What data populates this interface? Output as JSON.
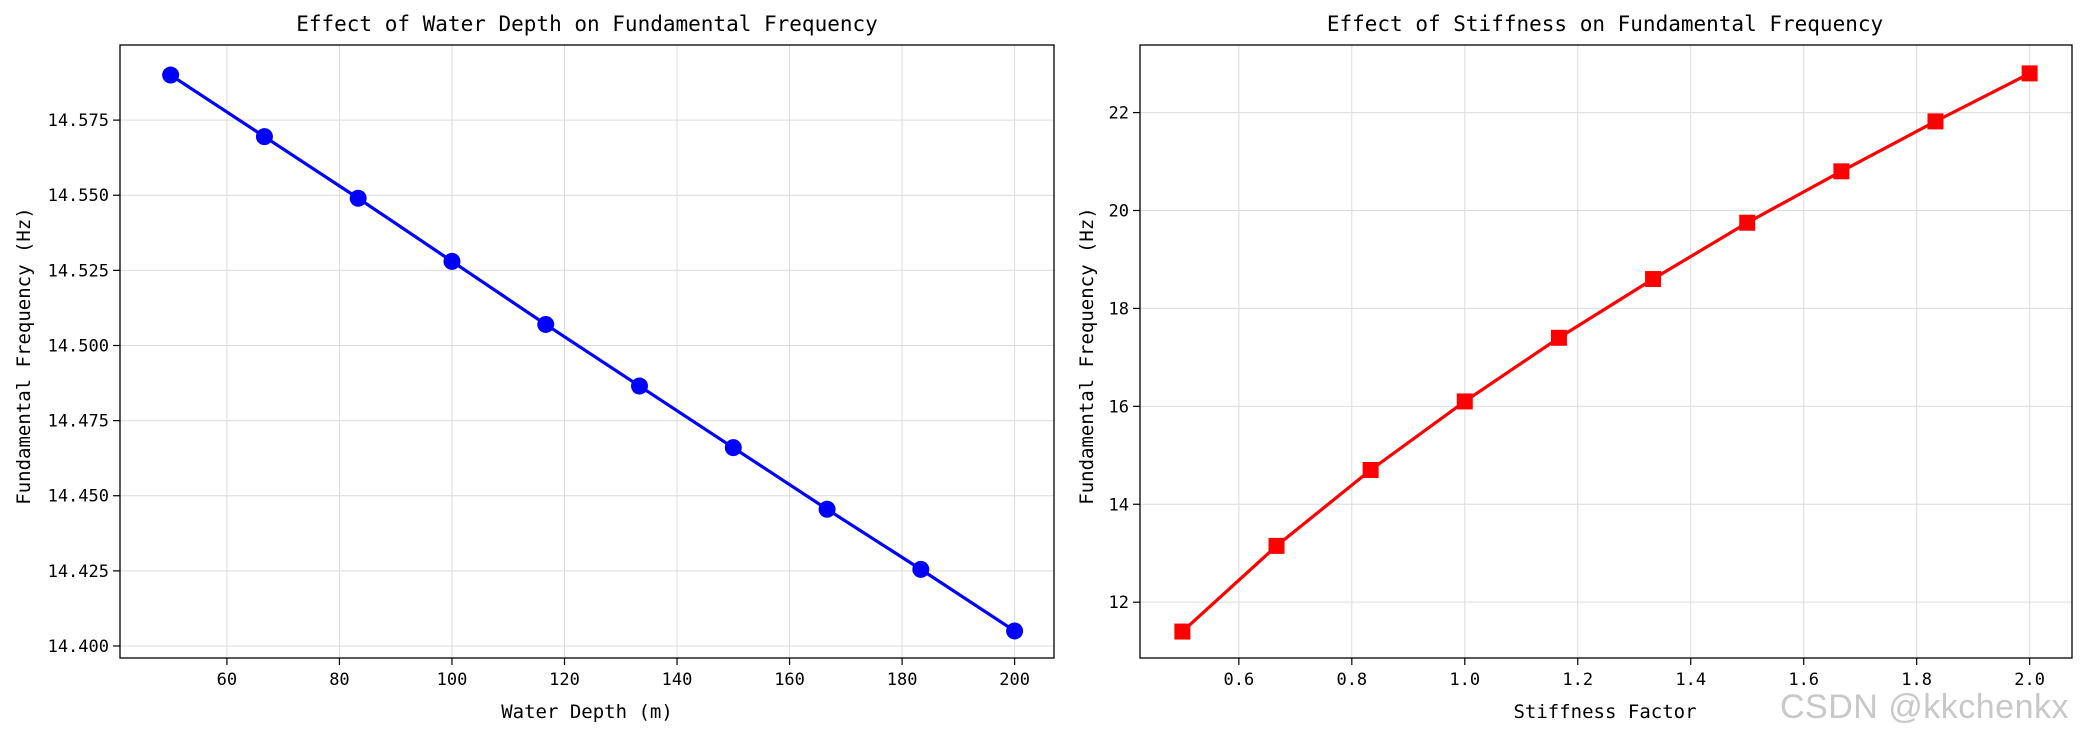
{
  "chart_data": [
    {
      "type": "line",
      "title": "Effect of Water Depth on Fundamental Frequency",
      "xlabel": "Water Depth (m)",
      "ylabel": "Fundamental Frequency (Hz)",
      "xlim": [
        41,
        207
      ],
      "ylim": [
        14.396,
        14.6
      ],
      "xticks": [
        60,
        80,
        100,
        120,
        140,
        160,
        180,
        200
      ],
      "xtick_labels": [
        "60",
        "80",
        "100",
        "120",
        "140",
        "160",
        "180",
        "200"
      ],
      "yticks": [
        14.4,
        14.425,
        14.45,
        14.475,
        14.5,
        14.525,
        14.55,
        14.575
      ],
      "ytick_labels": [
        "14.400",
        "14.425",
        "14.450",
        "14.475",
        "14.500",
        "14.525",
        "14.550",
        "14.575"
      ],
      "grid": true,
      "series": [
        {
          "name": "Fundamental Frequency",
          "marker": "circle",
          "color": "#0000ff",
          "x": [
            50,
            66.67,
            83.33,
            100,
            116.67,
            133.33,
            150,
            166.67,
            183.33,
            200
          ],
          "y": [
            14.59,
            14.5695,
            14.549,
            14.528,
            14.507,
            14.4865,
            14.466,
            14.4455,
            14.4255,
            14.405
          ]
        }
      ]
    },
    {
      "type": "line",
      "title": "Effect of Stiffness on Fundamental Frequency",
      "xlabel": "Stiffness Factor",
      "ylabel": "Fundamental Frequency (Hz)",
      "xlim": [
        0.425,
        2.075
      ],
      "ylim": [
        10.86,
        23.38
      ],
      "xticks": [
        0.6,
        0.8,
        1.0,
        1.2,
        1.4,
        1.6,
        1.8,
        2.0
      ],
      "xtick_labels": [
        "0.6",
        "0.8",
        "1.0",
        "1.2",
        "1.4",
        "1.6",
        "1.8",
        "2.0"
      ],
      "yticks": [
        12,
        14,
        16,
        18,
        20,
        22
      ],
      "ytick_labels": [
        "12",
        "14",
        "16",
        "18",
        "20",
        "22"
      ],
      "grid": true,
      "series": [
        {
          "name": "Fundamental Frequency",
          "marker": "square",
          "color": "#ff0000",
          "x": [
            0.5,
            0.6667,
            0.8333,
            1.0,
            1.1667,
            1.3333,
            1.5,
            1.6667,
            1.8333,
            2.0
          ],
          "y": [
            11.4,
            13.15,
            14.7,
            16.1,
            17.4,
            18.6,
            19.75,
            20.8,
            21.82,
            22.8
          ]
        }
      ]
    }
  ],
  "watermark": "CSDN @kkchenkx"
}
